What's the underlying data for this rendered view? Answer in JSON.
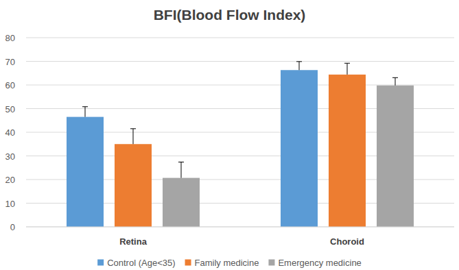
{
  "chart_data": {
    "type": "bar",
    "title": "BFI(Blood Flow Index)",
    "categories": [
      "Retina",
      "Choroid"
    ],
    "series": [
      {
        "name": "Control (Age<35)",
        "color": "#5b9bd5",
        "values": [
          46.5,
          66.3
        ],
        "errors": [
          4.3,
          3.6
        ]
      },
      {
        "name": "Family medicine",
        "color": "#ed7d31",
        "values": [
          35,
          64.4
        ],
        "errors": [
          6.5,
          4.8
        ]
      },
      {
        "name": "Emergency medicine",
        "color": "#a5a5a5",
        "values": [
          20.7,
          59.8
        ],
        "errors": [
          6.7,
          3.3
        ]
      }
    ],
    "ylim": [
      0,
      80
    ],
    "yticks": [
      0,
      10,
      20,
      30,
      40,
      50,
      60,
      70,
      80
    ],
    "grid": true,
    "legend": "bottom"
  }
}
